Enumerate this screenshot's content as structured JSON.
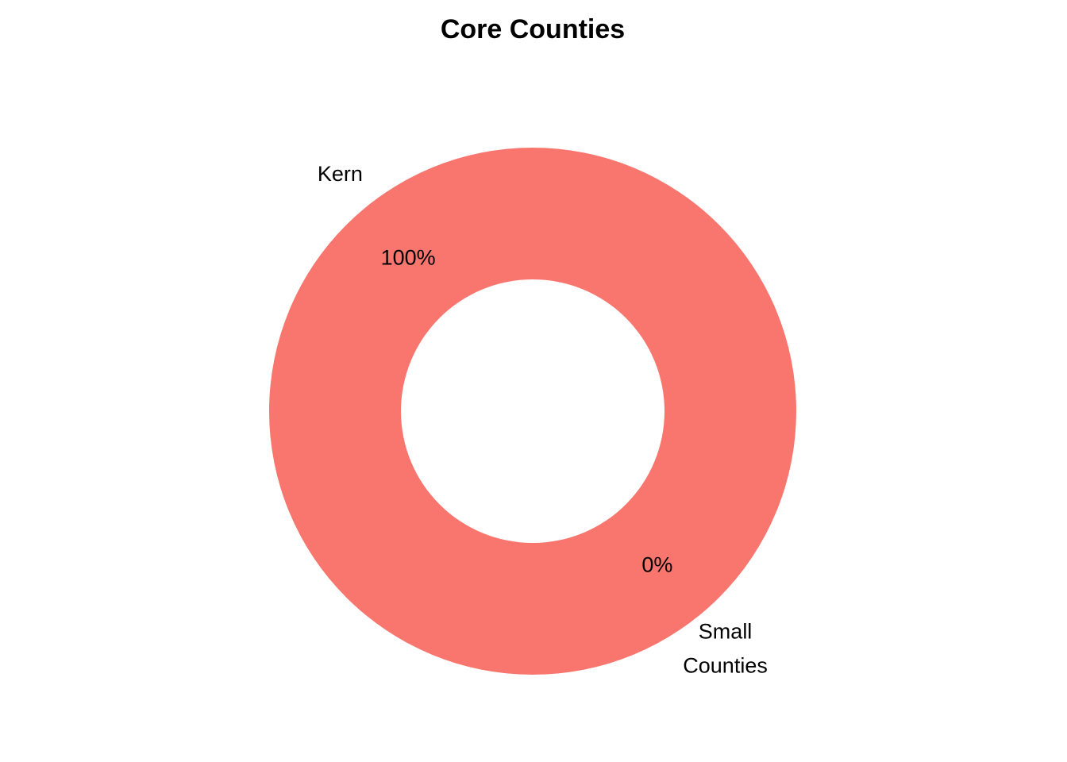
{
  "chart_data": {
    "type": "pie",
    "variant": "donut",
    "title": "Core Counties",
    "categories": [
      "Kern",
      "Small Counties"
    ],
    "values": [
      100,
      0
    ],
    "value_labels": [
      "100%",
      "0%"
    ],
    "colors": [
      "#F8766D",
      "#00BFC4"
    ],
    "legend": "none",
    "grid": false
  }
}
